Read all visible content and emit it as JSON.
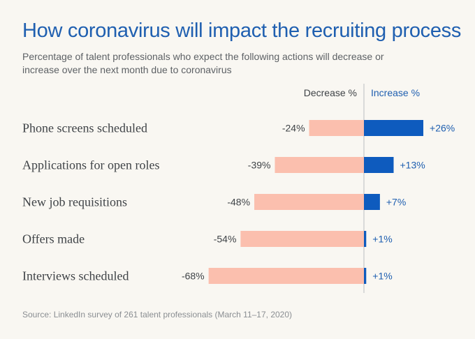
{
  "title": "How coronavirus will impact the recruiting process",
  "subtitle": "Percentage of talent professionals who expect the following actions will decrease or increase over the next month due to coronavirus",
  "source": "Source: LinkedIn survey of 261 talent professionals (March 11–17, 2020)",
  "colors": {
    "title": "#1f5fb0",
    "decrease": "#fbbfae",
    "increase": "#0e5bbe",
    "increase_text": "#1f5fb0",
    "divider": "#b9bcc0",
    "background": "#f9f7f2"
  },
  "chart_data": {
    "type": "bar",
    "orientation": "horizontal-diverging",
    "categories": [
      "Phone screens scheduled",
      "Applications for open roles",
      "New job requisitions",
      "Offers made",
      "Interviews scheduled"
    ],
    "series": [
      {
        "name": "Decrease %",
        "values": [
          -24,
          -39,
          -48,
          -54,
          -68
        ],
        "labels": [
          "-24%",
          "-39%",
          "-48%",
          "-54%",
          "-68%"
        ]
      },
      {
        "name": "Increase %",
        "values": [
          26,
          13,
          7,
          1,
          1
        ],
        "labels": [
          "+26%",
          "+13%",
          "+7%",
          "+1%",
          "+1%"
        ]
      }
    ],
    "xlim": [
      -68,
      26
    ],
    "legend_position": "top"
  }
}
